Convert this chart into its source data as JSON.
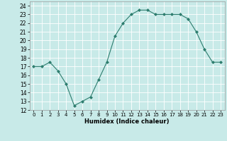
{
  "x": [
    0,
    1,
    2,
    3,
    4,
    5,
    6,
    7,
    8,
    9,
    10,
    11,
    12,
    13,
    14,
    15,
    16,
    17,
    18,
    19,
    20,
    21,
    22,
    23
  ],
  "y": [
    17,
    17,
    17.5,
    16.5,
    15,
    12.5,
    13,
    13.5,
    15.5,
    17.5,
    20.5,
    22,
    23,
    23.5,
    23.5,
    23,
    23,
    23,
    23,
    22.5,
    21,
    19,
    17.5,
    17.5
  ],
  "line_color": "#2d7d6e",
  "marker_color": "#2d7d6e",
  "bg_color": "#c8eae8",
  "grid_color": "#ffffff",
  "xlabel": "Humidex (Indice chaleur)",
  "xlim": [
    -0.5,
    23.5
  ],
  "ylim": [
    12,
    24.5
  ],
  "yticks": [
    12,
    13,
    14,
    15,
    16,
    17,
    18,
    19,
    20,
    21,
    22,
    23,
    24
  ],
  "xticks": [
    0,
    1,
    2,
    3,
    4,
    5,
    6,
    7,
    8,
    9,
    10,
    11,
    12,
    13,
    14,
    15,
    16,
    17,
    18,
    19,
    20,
    21,
    22,
    23
  ]
}
